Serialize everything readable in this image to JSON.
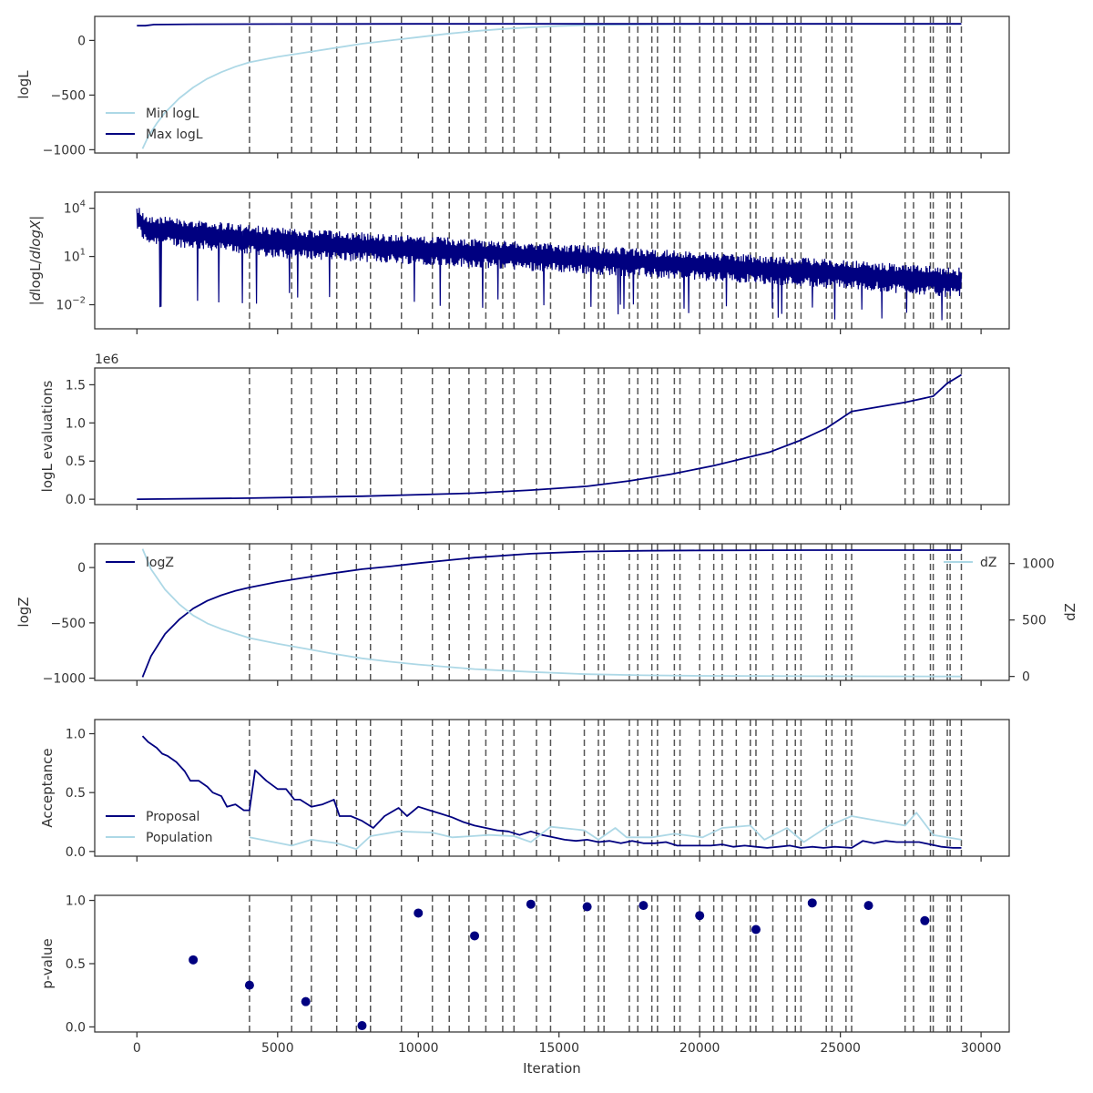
{
  "chart_data": [
    {
      "type": "line",
      "ylabel": "logL",
      "ylim": [
        -1030,
        220
      ],
      "yticks": [
        0,
        -500,
        -1000
      ],
      "yticklabels": [
        "0",
        "−500",
        "−1000"
      ],
      "legend_placement": "lower-left",
      "series": [
        {
          "name": "Min logL",
          "color": "#add8e6",
          "x": [
            200,
            400,
            700,
            1000,
            1500,
            2000,
            2500,
            3000,
            3500,
            4000,
            5000,
            6000,
            7000,
            8000,
            9000,
            10000,
            11000,
            12000,
            13000,
            14000,
            15000,
            16000,
            18000,
            20000,
            22000,
            25000,
            27000,
            29300
          ],
          "y": [
            -990,
            -880,
            -760,
            -660,
            -530,
            -430,
            -350,
            -290,
            -240,
            -200,
            -150,
            -110,
            -70,
            -30,
            0,
            30,
            60,
            85,
            105,
            120,
            132,
            140,
            147,
            150,
            151,
            152,
            152,
            152
          ]
        },
        {
          "name": "Max logL",
          "color": "#000080",
          "x": [
            0,
            300,
            600,
            2000,
            5000,
            10000,
            20000,
            29300
          ],
          "y": [
            135,
            135,
            145,
            148,
            150,
            152,
            152,
            152
          ]
        }
      ]
    },
    {
      "type": "line",
      "ylabel": "|dlogL/dlogX|",
      "yscale": "log",
      "ylim": [
        -3.5,
        5.0
      ],
      "yticks": [
        4,
        1,
        -2
      ],
      "yticklabels": [
        "10^4",
        "10^1",
        "10^-2"
      ],
      "series": [
        {
          "name": "",
          "color": "#000080",
          "x": [
            0,
            300,
            5000,
            10000,
            15000,
            20000,
            25000,
            29300
          ],
          "upper_log10": [
            4.3,
            3.6,
            2.8,
            2.3,
            1.8,
            1.3,
            0.8,
            0.3
          ],
          "lower_log10": [
            2.6,
            1.8,
            0.9,
            0.5,
            0.0,
            -0.5,
            -1.0,
            -1.6
          ],
          "spike_log10": [
            -2.6,
            -2.4,
            -2.0,
            -2.0,
            -2.5,
            -2.8,
            -3.0,
            -3.0
          ]
        }
      ]
    },
    {
      "type": "line",
      "ylabel": "logL evaluations",
      "offset_text": "1e6",
      "ylim": [
        -0.07,
        1.72
      ],
      "yticks": [
        0.0,
        0.5,
        1.0,
        1.5
      ],
      "yticklabels": [
        "0.0",
        "0.5",
        "1.0",
        "1.5"
      ],
      "series": [
        {
          "name": "",
          "color": "#000080",
          "x": [
            0,
            4000,
            8000,
            10000,
            12000,
            14000,
            16000,
            17500,
            19000,
            20500,
            21500,
            22500,
            23500,
            24500,
            25400,
            27300,
            28300,
            28800,
            29300
          ],
          "y": [
            0.0,
            0.015,
            0.04,
            0.06,
            0.08,
            0.12,
            0.17,
            0.24,
            0.33,
            0.44,
            0.53,
            0.62,
            0.76,
            0.93,
            1.15,
            1.27,
            1.35,
            1.52,
            1.63
          ]
        }
      ]
    },
    {
      "type": "line",
      "ylabel": "logZ",
      "ylabel_right": "dZ",
      "ylim": [
        -1020,
        215
      ],
      "ylim_right": [
        -35,
        1175
      ],
      "yticks": [
        0,
        -500,
        -1000
      ],
      "yticklabels": [
        "0",
        "−500",
        "−1000"
      ],
      "yticks_right": [
        1000,
        500,
        0
      ],
      "yticklabels_right": [
        "1000",
        "500",
        "0"
      ],
      "series": [
        {
          "name": "logZ",
          "color": "#000080",
          "axis": "left",
          "legend_placement": "upper-left",
          "x": [
            200,
            500,
            1000,
            1500,
            2000,
            2500,
            3000,
            3500,
            4000,
            5000,
            6000,
            7000,
            8000,
            9000,
            10000,
            12000,
            14000,
            16000,
            18000,
            20000,
            24000,
            29300
          ],
          "y": [
            -990,
            -800,
            -600,
            -470,
            -370,
            -300,
            -250,
            -210,
            -180,
            -130,
            -90,
            -50,
            -15,
            10,
            40,
            90,
            125,
            145,
            152,
            155,
            157,
            157
          ]
        },
        {
          "name": "dZ",
          "color": "#add8e6",
          "axis": "right",
          "legend_placement": "upper-right",
          "x": [
            200,
            500,
            1000,
            1500,
            2000,
            2500,
            3000,
            3500,
            4000,
            5000,
            6000,
            7000,
            8000,
            9000,
            10000,
            12000,
            14000,
            16000,
            18000,
            20000,
            24000,
            29300
          ],
          "y": [
            1130,
            950,
            770,
            640,
            540,
            470,
            420,
            380,
            340,
            290,
            245,
            200,
            160,
            130,
            105,
            65,
            40,
            20,
            10,
            5,
            2,
            0
          ]
        }
      ]
    },
    {
      "type": "line",
      "ylabel": "Acceptance",
      "ylim": [
        -0.04,
        1.12
      ],
      "yticks": [
        0.0,
        0.5,
        1.0
      ],
      "yticklabels": [
        "0.0",
        "0.5",
        "1.0"
      ],
      "legend_placement": "lower-left",
      "series": [
        {
          "name": "Proposal",
          "color": "#000080",
          "x": [
            200,
            400,
            700,
            900,
            1100,
            1400,
            1700,
            1900,
            2200,
            2500,
            2700,
            3000,
            3200,
            3500,
            3800,
            4000,
            4200,
            4600,
            5000,
            5300,
            5600,
            5800,
            6200,
            6600,
            7000,
            7200,
            7600,
            8000,
            8400,
            8800,
            9300,
            9600,
            10000,
            10400,
            10800,
            11200,
            11600,
            12000,
            12400,
            12800,
            13200,
            13600,
            14000,
            14400,
            14800,
            15200,
            15600,
            16000,
            16400,
            16800,
            17200,
            17600,
            18000,
            18400,
            18800,
            19200,
            19600,
            20000,
            20400,
            20800,
            21200,
            21600,
            22000,
            22400,
            22800,
            23200,
            23600,
            24000,
            24400,
            24800,
            25400,
            25800,
            26200,
            26600,
            27000,
            27400,
            27800,
            28200,
            28600,
            29000,
            29300
          ],
          "y": [
            0.98,
            0.93,
            0.88,
            0.83,
            0.81,
            0.76,
            0.68,
            0.6,
            0.6,
            0.55,
            0.5,
            0.47,
            0.38,
            0.4,
            0.35,
            0.35,
            0.69,
            0.6,
            0.53,
            0.53,
            0.44,
            0.44,
            0.38,
            0.4,
            0.44,
            0.3,
            0.3,
            0.26,
            0.2,
            0.3,
            0.37,
            0.3,
            0.38,
            0.35,
            0.32,
            0.29,
            0.25,
            0.22,
            0.2,
            0.18,
            0.17,
            0.14,
            0.17,
            0.14,
            0.12,
            0.1,
            0.09,
            0.1,
            0.08,
            0.09,
            0.07,
            0.09,
            0.07,
            0.07,
            0.08,
            0.05,
            0.05,
            0.05,
            0.05,
            0.06,
            0.04,
            0.05,
            0.04,
            0.03,
            0.04,
            0.05,
            0.03,
            0.04,
            0.03,
            0.04,
            0.03,
            0.09,
            0.07,
            0.09,
            0.08,
            0.08,
            0.08,
            0.06,
            0.04,
            0.03,
            0.03
          ]
        },
        {
          "name": "Population",
          "color": "#add8e6",
          "x": [
            4000,
            5500,
            6200,
            7100,
            7800,
            8300,
            9300,
            10500,
            11200,
            11900,
            12500,
            13400,
            14000,
            14700,
            15900,
            16400,
            17000,
            17400,
            18300,
            19100,
            20100,
            20800,
            21800,
            22300,
            23100,
            23700,
            24600,
            25400,
            27300,
            27700,
            28300,
            29300
          ],
          "y": [
            0.12,
            0.05,
            0.1,
            0.07,
            0.02,
            0.13,
            0.17,
            0.16,
            0.12,
            0.13,
            0.14,
            0.13,
            0.08,
            0.21,
            0.18,
            0.1,
            0.2,
            0.12,
            0.12,
            0.15,
            0.12,
            0.2,
            0.22,
            0.1,
            0.2,
            0.08,
            0.22,
            0.3,
            0.22,
            0.33,
            0.14,
            0.1
          ]
        }
      ]
    },
    {
      "type": "scatter",
      "ylabel": "p-value",
      "xlabel": "Iteration",
      "ylim": [
        -0.04,
        1.04
      ],
      "yticks": [
        0.0,
        0.5,
        1.0
      ],
      "yticklabels": [
        "0.0",
        "0.5",
        "1.0"
      ],
      "xticks": [
        0,
        5000,
        10000,
        15000,
        20000,
        25000,
        30000
      ],
      "xticklabels": [
        "0",
        "5000",
        "10000",
        "15000",
        "20000",
        "25000",
        "30000"
      ],
      "series": [
        {
          "name": "",
          "color": "#000080",
          "x": [
            2000,
            4000,
            6000,
            8000,
            10000,
            12000,
            14000,
            16000,
            18000,
            20000,
            22000,
            24000,
            26000,
            28000
          ],
          "y": [
            0.53,
            0.33,
            0.2,
            0.01,
            0.9,
            0.72,
            0.97,
            0.95,
            0.96,
            0.88,
            0.77,
            0.98,
            0.96,
            0.84
          ]
        }
      ]
    }
  ],
  "shared": {
    "xlim": [
      -1500,
      31000
    ],
    "vlines_x": [
      4000,
      5500,
      6200,
      7100,
      7800,
      8300,
      9400,
      10500,
      11100,
      11800,
      12400,
      13000,
      13400,
      14200,
      14700,
      15900,
      16400,
      16600,
      17500,
      17800,
      18300,
      18500,
      19100,
      19300,
      20000,
      20500,
      20800,
      21300,
      21800,
      22000,
      22600,
      23100,
      23400,
      23600,
      24500,
      24700,
      25200,
      25400,
      27300,
      27600,
      28200,
      28300,
      28800,
      28900,
      29300
    ],
    "vline_color": "#555555"
  }
}
